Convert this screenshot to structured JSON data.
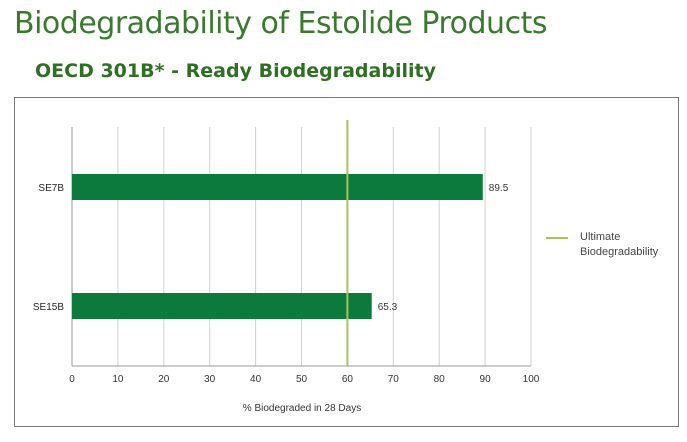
{
  "title": "Biodegradability of Estolide Products",
  "subtitle": "OECD 301B* - Ready Biodegradability",
  "colors": {
    "title": "#3a7a2e",
    "bar": "#0c7a3c",
    "reference_line": "#a9c35a",
    "grid": "#d0d0d0"
  },
  "chart_data": {
    "type": "bar",
    "orientation": "horizontal",
    "categories": [
      "SE7B",
      "SE15B"
    ],
    "values": [
      89.5,
      65.3
    ],
    "value_labels": [
      "89.5",
      "65.3"
    ],
    "xlabel": "% Biodegraded in 28 Days",
    "xlim": [
      0,
      100
    ],
    "xticks": [
      "0",
      "10",
      "20",
      "30",
      "40",
      "50",
      "60",
      "70",
      "80",
      "90",
      "100"
    ],
    "grid": true,
    "reference_line": {
      "value": 60,
      "legend_lines": [
        "Ultimate",
        "Biodegradability"
      ]
    },
    "legend_position": "right"
  }
}
